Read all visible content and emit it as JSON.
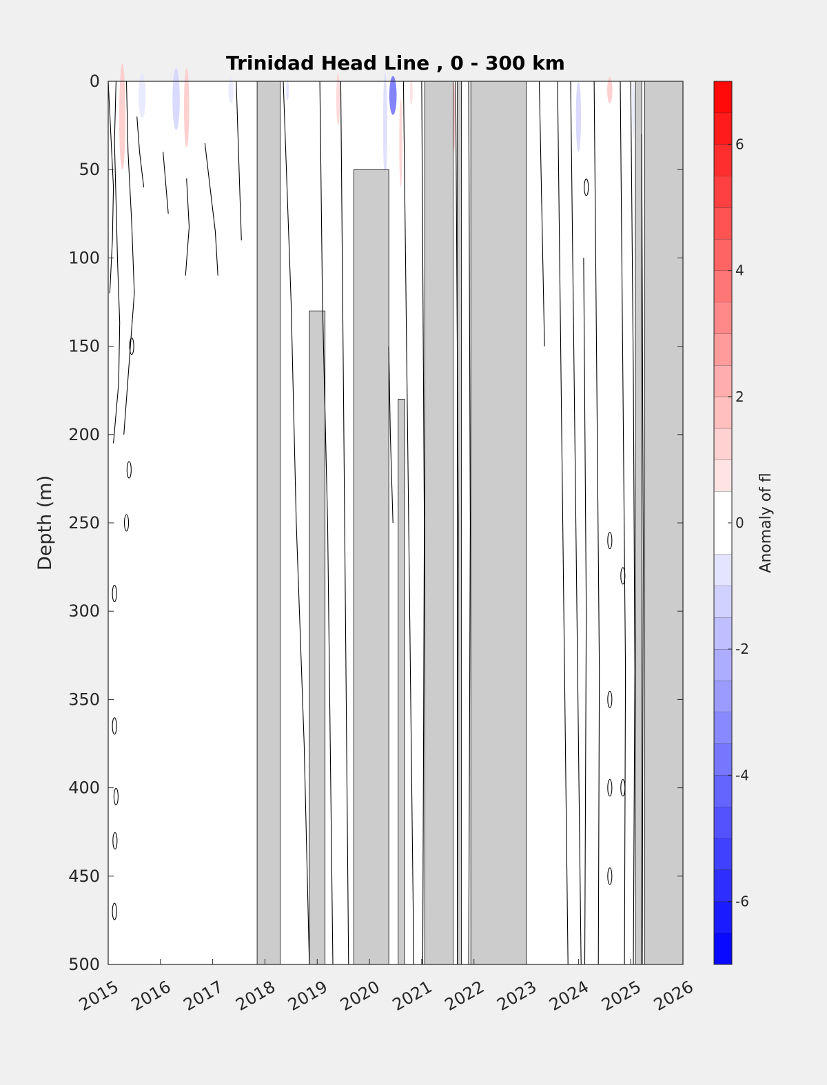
{
  "chart_data": {
    "type": "heatmap",
    "title": "Trinidad Head Line , 0 - 300 km",
    "ylabel": "Depth (m)",
    "xlabel": "",
    "xlim": [
      2015,
      2026
    ],
    "ylim": [
      0,
      500
    ],
    "y_reversed": true,
    "x_ticks": [
      "2015",
      "2016",
      "2017",
      "2018",
      "2019",
      "2020",
      "2021",
      "2022",
      "2023",
      "2024",
      "2025",
      "2026"
    ],
    "y_ticks": [
      "0",
      "50",
      "100",
      "150",
      "200",
      "250",
      "300",
      "350",
      "400",
      "450",
      "500"
    ],
    "colorbar": {
      "label": "Anomaly of fl",
      "range": [
        -7,
        7
      ],
      "ticks": [
        "-6",
        "-4",
        "-2",
        "0",
        "2",
        "4",
        "6"
      ],
      "levels": [
        -7,
        -6.5,
        -6,
        -5.5,
        -5,
        -4.5,
        -4,
        -3.5,
        -3,
        -2.5,
        -2,
        -1.5,
        -1,
        -0.5,
        0.5,
        1,
        1.5,
        2,
        2.5,
        3,
        3.5,
        4,
        4.5,
        5,
        5.5,
        6,
        6.5,
        7
      ],
      "negative_color": "#0000ff",
      "positive_color": "#ff0000",
      "zero_color": "#ffffff"
    },
    "missing_color": "#cccccc",
    "missing_periods": [
      {
        "start": 2017.85,
        "end": 2018.29,
        "top": 0,
        "bottom": 500
      },
      {
        "start": 2019.7,
        "end": 2020.37,
        "top": 50,
        "bottom": 500
      },
      {
        "start": 2021.06,
        "end": 2021.6,
        "top": 0,
        "bottom": 500
      },
      {
        "start": 2021.94,
        "end": 2023.0,
        "top": 0,
        "bottom": 500
      },
      {
        "start": 2025.09,
        "end": 2025.21,
        "top": 0,
        "bottom": 500
      },
      {
        "start": 2025.27,
        "end": 2026.0,
        "top": 0,
        "bottom": 500
      },
      {
        "start": 2018.85,
        "end": 2019.15,
        "top": 130,
        "bottom": 500
      },
      {
        "start": 2020.55,
        "end": 2020.67,
        "top": 180,
        "bottom": 500
      },
      {
        "start": 2021.68,
        "end": 2021.76,
        "top": 0,
        "bottom": 500
      }
    ],
    "anomaly_patches": [
      {
        "x": 2015.27,
        "depth": 20,
        "value": 1.5,
        "w": 0.12,
        "h": 60
      },
      {
        "x": 2015.65,
        "depth": 8,
        "value": -0.7,
        "w": 0.14,
        "h": 25
      },
      {
        "x": 2016.3,
        "depth": 10,
        "value": -1.2,
        "w": 0.14,
        "h": 35
      },
      {
        "x": 2016.5,
        "depth": 15,
        "value": 1.5,
        "w": 0.1,
        "h": 45
      },
      {
        "x": 2017.35,
        "depth": 5,
        "value": -0.6,
        "w": 0.1,
        "h": 15
      },
      {
        "x": 2018.43,
        "depth": 5,
        "value": -0.8,
        "w": 0.06,
        "h": 12
      },
      {
        "x": 2019.4,
        "depth": 10,
        "value": 1.2,
        "w": 0.07,
        "h": 30
      },
      {
        "x": 2020.45,
        "depth": 8,
        "value": -4.0,
        "w": 0.14,
        "h": 22
      },
      {
        "x": 2020.3,
        "depth": 25,
        "value": -1.0,
        "w": 0.08,
        "h": 60
      },
      {
        "x": 2020.6,
        "depth": 35,
        "value": 1.3,
        "w": 0.06,
        "h": 50
      },
      {
        "x": 2020.8,
        "depth": 6,
        "value": 1.0,
        "w": 0.05,
        "h": 15
      },
      {
        "x": 2021.62,
        "depth": 20,
        "value": 1.5,
        "w": 0.04,
        "h": 40
      },
      {
        "x": 2024.0,
        "depth": 20,
        "value": -1.2,
        "w": 0.1,
        "h": 40
      },
      {
        "x": 2024.6,
        "depth": 5,
        "value": 1.5,
        "w": 0.1,
        "h": 15
      },
      {
        "x": 2025.05,
        "depth": 15,
        "value": -0.6,
        "w": 0.05,
        "h": 35
      }
    ],
    "contour_traces": [
      {
        "depth_top": 0,
        "depth_bottom": 120,
        "x_points": [
          2015.0,
          2015.05,
          2015.1,
          2015.08,
          2015.03
        ]
      },
      {
        "depth_top": 0,
        "depth_bottom": 205,
        "x_points": [
          2015.15,
          2015.12,
          2015.15,
          2015.18,
          2015.22,
          2015.2,
          2015.1
        ]
      },
      {
        "depth_top": 0,
        "depth_bottom": 200,
        "x_points": [
          2015.35,
          2015.38,
          2015.45,
          2015.5,
          2015.4,
          2015.3
        ]
      },
      {
        "depth_top": 20,
        "depth_bottom": 60,
        "x_points": [
          2015.55,
          2015.6,
          2015.68
        ]
      },
      {
        "depth_top": 40,
        "depth_bottom": 75,
        "x_points": [
          2016.05,
          2016.1,
          2016.15
        ]
      },
      {
        "depth_top": 55,
        "depth_bottom": 110,
        "x_points": [
          2016.5,
          2016.55,
          2016.48
        ]
      },
      {
        "depth_top": 35,
        "depth_bottom": 110,
        "x_points": [
          2016.85,
          2016.95,
          2017.05,
          2017.1
        ]
      },
      {
        "depth_top": 0,
        "depth_bottom": 90,
        "x_points": [
          2017.45,
          2017.5,
          2017.55
        ]
      },
      {
        "depth_top": 0,
        "depth_bottom": 500,
        "x_points": [
          2018.35,
          2018.5,
          2018.6,
          2018.75,
          2018.85
        ]
      },
      {
        "depth_top": 0,
        "depth_bottom": 500,
        "x_points": [
          2019.05,
          2019.1,
          2019.2,
          2019.25,
          2019.3
        ]
      },
      {
        "depth_top": 0,
        "depth_bottom": 500,
        "x_points": [
          2019.45,
          2019.5,
          2019.55,
          2019.6
        ]
      },
      {
        "depth_top": 150,
        "depth_bottom": 250,
        "x_points": [
          2020.37,
          2020.4,
          2020.45
        ]
      },
      {
        "depth_top": 0,
        "depth_bottom": 500,
        "x_points": [
          2020.65,
          2020.7,
          2020.75,
          2020.8,
          2020.85
        ]
      },
      {
        "depth_top": 0,
        "depth_bottom": 500,
        "x_points": [
          2021.0,
          2021.05,
          2021.02
        ]
      },
      {
        "depth_top": 0,
        "depth_bottom": 500,
        "x_points": [
          2021.65,
          2021.7,
          2021.68
        ]
      },
      {
        "depth_top": 0,
        "depth_bottom": 500,
        "x_points": [
          2021.9,
          2021.93,
          2021.9
        ]
      },
      {
        "depth_top": 0,
        "depth_bottom": 150,
        "x_points": [
          2023.25,
          2023.3,
          2023.35
        ]
      },
      {
        "depth_top": 0,
        "depth_bottom": 500,
        "x_points": [
          2023.6,
          2023.65,
          2023.7,
          2023.75,
          2023.8
        ]
      },
      {
        "depth_top": 0,
        "depth_bottom": 500,
        "x_points": [
          2023.85,
          2023.9,
          2023.95,
          2024.0,
          2024.05
        ]
      },
      {
        "depth_top": 100,
        "depth_bottom": 500,
        "x_points": [
          2024.1,
          2024.15,
          2024.12
        ]
      },
      {
        "depth_top": 0,
        "depth_bottom": 500,
        "x_points": [
          2024.3,
          2024.35,
          2024.4,
          2024.38
        ]
      },
      {
        "depth_top": 0,
        "depth_bottom": 500,
        "x_points": [
          2024.8,
          2024.85,
          2024.9,
          2024.88
        ]
      },
      {
        "depth_top": 0,
        "depth_bottom": 500,
        "x_points": [
          2025.0,
          2025.05,
          2025.08,
          2025.05
        ]
      },
      {
        "depth_top": 30,
        "depth_bottom": 500,
        "x_points": [
          2025.21,
          2025.24,
          2025.22
        ]
      }
    ],
    "small_closed_contours": [
      {
        "x": 2015.45,
        "depth": 150
      },
      {
        "x": 2015.4,
        "depth": 220
      },
      {
        "x": 2015.35,
        "depth": 250
      },
      {
        "x": 2015.12,
        "depth": 290
      },
      {
        "x": 2015.12,
        "depth": 365
      },
      {
        "x": 2015.15,
        "depth": 405
      },
      {
        "x": 2015.13,
        "depth": 430
      },
      {
        "x": 2015.12,
        "depth": 470
      },
      {
        "x": 2024.6,
        "depth": 350
      },
      {
        "x": 2024.6,
        "depth": 400
      },
      {
        "x": 2024.6,
        "depth": 450
      },
      {
        "x": 2024.85,
        "depth": 280
      },
      {
        "x": 2024.85,
        "depth": 400
      },
      {
        "x": 2024.6,
        "depth": 260
      },
      {
        "x": 2024.15,
        "depth": 60
      }
    ]
  }
}
